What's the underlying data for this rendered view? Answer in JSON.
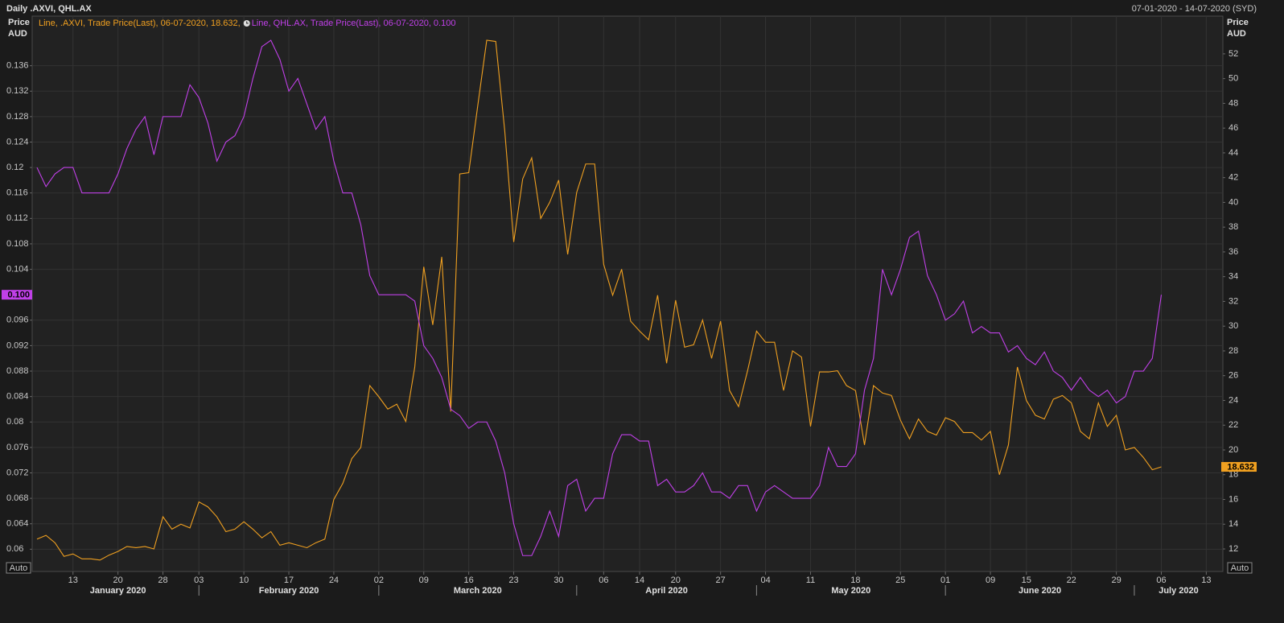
{
  "chart_data": {
    "type": "line",
    "title": "Daily .AXVI, QHL.AX",
    "subtitle": "07-01-2020 - 14-07-2020 (SYD)",
    "ylabel": [
      "Price",
      "AUD"
    ],
    "y2label": [
      "Price",
      "AUD"
    ],
    "buttons": [
      "Auto",
      "Auto"
    ],
    "grid": true,
    "x": [
      "2020-01-07",
      "2020-01-08",
      "2020-01-09",
      "2020-01-10",
      "2020-01-13",
      "2020-01-14",
      "2020-01-15",
      "2020-01-16",
      "2020-01-17",
      "2020-01-20",
      "2020-01-21",
      "2020-01-22",
      "2020-01-23",
      "2020-01-24",
      "2020-01-28",
      "2020-01-29",
      "2020-01-30",
      "2020-01-31",
      "2020-02-03",
      "2020-02-04",
      "2020-02-05",
      "2020-02-06",
      "2020-02-07",
      "2020-02-10",
      "2020-02-11",
      "2020-02-12",
      "2020-02-13",
      "2020-02-14",
      "2020-02-17",
      "2020-02-18",
      "2020-02-19",
      "2020-02-20",
      "2020-02-21",
      "2020-02-24",
      "2020-02-25",
      "2020-02-26",
      "2020-02-27",
      "2020-02-28",
      "2020-03-02",
      "2020-03-03",
      "2020-03-04",
      "2020-03-05",
      "2020-03-06",
      "2020-03-09",
      "2020-03-10",
      "2020-03-11",
      "2020-03-12",
      "2020-03-13",
      "2020-03-16",
      "2020-03-17",
      "2020-03-18",
      "2020-03-19",
      "2020-03-20",
      "2020-03-23",
      "2020-03-24",
      "2020-03-25",
      "2020-03-26",
      "2020-03-27",
      "2020-03-30",
      "2020-03-31",
      "2020-04-01",
      "2020-04-02",
      "2020-04-03",
      "2020-04-06",
      "2020-04-07",
      "2020-04-08",
      "2020-04-09",
      "2020-04-14",
      "2020-04-15",
      "2020-04-16",
      "2020-04-17",
      "2020-04-20",
      "2020-04-21",
      "2020-04-22",
      "2020-04-23",
      "2020-04-24",
      "2020-04-27",
      "2020-04-28",
      "2020-04-29",
      "2020-04-30",
      "2020-05-01",
      "2020-05-04",
      "2020-05-05",
      "2020-05-06",
      "2020-05-07",
      "2020-05-08",
      "2020-05-11",
      "2020-05-12",
      "2020-05-13",
      "2020-05-14",
      "2020-05-15",
      "2020-05-18",
      "2020-05-19",
      "2020-05-20",
      "2020-05-21",
      "2020-05-22",
      "2020-05-25",
      "2020-05-26",
      "2020-05-27",
      "2020-05-28",
      "2020-05-29",
      "2020-06-01",
      "2020-06-02",
      "2020-06-03",
      "2020-06-04",
      "2020-06-05",
      "2020-06-09",
      "2020-06-10",
      "2020-06-11",
      "2020-06-12",
      "2020-06-15",
      "2020-06-16",
      "2020-06-17",
      "2020-06-18",
      "2020-06-19",
      "2020-06-22",
      "2020-06-23",
      "2020-06-24",
      "2020-06-25",
      "2020-06-26",
      "2020-06-29",
      "2020-06-30",
      "2020-07-01",
      "2020-07-02",
      "2020-07-03",
      "2020-07-06"
    ],
    "xticks": [
      {
        "value": "2020-01-13",
        "label": "13"
      },
      {
        "value": "2020-01-20",
        "label": "20"
      },
      {
        "value": "2020-01-28",
        "label": "28"
      },
      {
        "value": "2020-02-03",
        "label": "03"
      },
      {
        "value": "2020-02-10",
        "label": "10"
      },
      {
        "value": "2020-02-17",
        "label": "17"
      },
      {
        "value": "2020-02-24",
        "label": "24"
      },
      {
        "value": "2020-03-02",
        "label": "02"
      },
      {
        "value": "2020-03-09",
        "label": "09"
      },
      {
        "value": "2020-03-16",
        "label": "16"
      },
      {
        "value": "2020-03-23",
        "label": "23"
      },
      {
        "value": "2020-03-30",
        "label": "30"
      },
      {
        "value": "2020-04-06",
        "label": "06"
      },
      {
        "value": "2020-04-14",
        "label": "14"
      },
      {
        "value": "2020-04-20",
        "label": "20"
      },
      {
        "value": "2020-04-27",
        "label": "27"
      },
      {
        "value": "2020-05-04",
        "label": "04"
      },
      {
        "value": "2020-05-11",
        "label": "11"
      },
      {
        "value": "2020-05-18",
        "label": "18"
      },
      {
        "value": "2020-05-25",
        "label": "25"
      },
      {
        "value": "2020-06-01",
        "label": "01"
      },
      {
        "value": "2020-06-09",
        "label": "09"
      },
      {
        "value": "2020-06-15",
        "label": "15"
      },
      {
        "value": "2020-06-22",
        "label": "22"
      },
      {
        "value": "2020-06-29",
        "label": "29"
      },
      {
        "value": "2020-07-06",
        "label": "06"
      },
      {
        "value": "2020-07-13",
        "label": "13"
      }
    ],
    "months": [
      {
        "value": "2020-01",
        "label": "January 2020"
      },
      {
        "value": "2020-02",
        "label": "February 2020"
      },
      {
        "value": "2020-03",
        "label": "March 2020"
      },
      {
        "value": "2020-04",
        "label": "April 2020"
      },
      {
        "value": "2020-05",
        "label": "May 2020"
      },
      {
        "value": "2020-06",
        "label": "June 2020"
      },
      {
        "value": "2020-07",
        "label": "July 2020"
      }
    ],
    "ylim": [
      0.0565,
      0.1438
    ],
    "yticks": [
      0.06,
      0.064,
      0.068,
      0.072,
      0.076,
      0.08,
      0.084,
      0.088,
      0.092,
      0.096,
      0.104,
      0.108,
      0.112,
      0.116,
      0.12,
      0.124,
      0.128,
      0.132,
      0.136
    ],
    "y2lim": [
      10.18,
      55.05
    ],
    "y2ticks": [
      12,
      14,
      16,
      18,
      20,
      22,
      24,
      26,
      28,
      30,
      32,
      34,
      36,
      38,
      40,
      42,
      44,
      46,
      48,
      50,
      52
    ],
    "series": [
      {
        "name": "Line, .AXVI, Trade Price(Last), 06-07-2020, 18.632,",
        "color": "#f0a020",
        "axis": "y2",
        "last_value_label": "18.632",
        "values": [
          12.8,
          13.1,
          12.5,
          11.4,
          11.6,
          11.2,
          11.2,
          11.1,
          11.5,
          11.8,
          12.2,
          12.1,
          12.2,
          12,
          14.6,
          13.6,
          14,
          13.7,
          15.8,
          15.4,
          14.6,
          13.4,
          13.6,
          14.2,
          13.6,
          12.9,
          13.4,
          12.3,
          12.5,
          12.3,
          12.1,
          12.5,
          12.8,
          16,
          17.3,
          19.3,
          20.2,
          25.2,
          24.3,
          23.3,
          23.7,
          22.3,
          26.7,
          34.8,
          30.1,
          35.6,
          23.1,
          42.3,
          42.4,
          47.8,
          53.1,
          53,
          45.8,
          36.8,
          41.9,
          43.6,
          38.7,
          40,
          41.8,
          35.8,
          40.8,
          43.1,
          43.1,
          35,
          32.5,
          34.6,
          30.4,
          29.6,
          28.9,
          32.5,
          27,
          32.1,
          28.3,
          28.5,
          30.5,
          27.4,
          30.4,
          24.8,
          23.5,
          26.4,
          29.6,
          28.7,
          28.7,
          24.8,
          28,
          27.5,
          21.9,
          26.3,
          26.3,
          26.4,
          25.2,
          24.8,
          20.4,
          25.2,
          24.6,
          24.4,
          22.4,
          20.9,
          22.5,
          21.5,
          21.2,
          22.6,
          22.3,
          21.4,
          21.4,
          20.8,
          21.5,
          18,
          20.4,
          26.7,
          24,
          22.8,
          22.5,
          24.1,
          24.4,
          23.8,
          21.5,
          20.9,
          23.8,
          21.9,
          22.8,
          20,
          20.2,
          19.4,
          18.4,
          18.632
        ]
      },
      {
        "name": "Line, QHL.AX, Trade Price(Last), 06-07-2020, 0.100",
        "color": "#c040e8",
        "axis": "y",
        "last_value_label": "0.100",
        "values": [
          0.12,
          0.117,
          0.119,
          0.12,
          0.12,
          0.116,
          0.116,
          0.116,
          0.116,
          0.119,
          0.123,
          0.126,
          0.128,
          0.122,
          0.128,
          0.128,
          0.128,
          0.133,
          0.131,
          0.127,
          0.121,
          0.124,
          0.125,
          0.128,
          0.134,
          0.139,
          0.14,
          0.137,
          0.132,
          0.134,
          0.13,
          0.126,
          0.128,
          0.121,
          0.116,
          0.116,
          0.111,
          0.103,
          0.1,
          0.1,
          0.1,
          0.1,
          0.099,
          0.092,
          0.09,
          0.087,
          0.082,
          0.081,
          0.079,
          0.08,
          0.08,
          0.077,
          0.072,
          0.064,
          0.059,
          0.059,
          0.062,
          0.066,
          0.062,
          0.07,
          0.071,
          0.066,
          0.068,
          0.068,
          0.075,
          0.078,
          0.078,
          0.077,
          0.077,
          0.07,
          0.071,
          0.069,
          0.069,
          0.07,
          0.072,
          0.069,
          0.069,
          0.068,
          0.07,
          0.07,
          0.066,
          0.069,
          0.07,
          0.069,
          0.068,
          0.068,
          0.068,
          0.07,
          0.076,
          0.073,
          0.073,
          0.075,
          0.085,
          0.09,
          0.104,
          0.1,
          0.104,
          0.109,
          0.11,
          0.103,
          0.1,
          0.096,
          0.097,
          0.099,
          0.094,
          0.095,
          0.094,
          0.094,
          0.091,
          0.092,
          0.09,
          0.089,
          0.091,
          0.088,
          0.087,
          0.085,
          0.087,
          0.085,
          0.084,
          0.085,
          0.083,
          0.084,
          0.088,
          0.088,
          0.09,
          0.1
        ]
      }
    ]
  }
}
